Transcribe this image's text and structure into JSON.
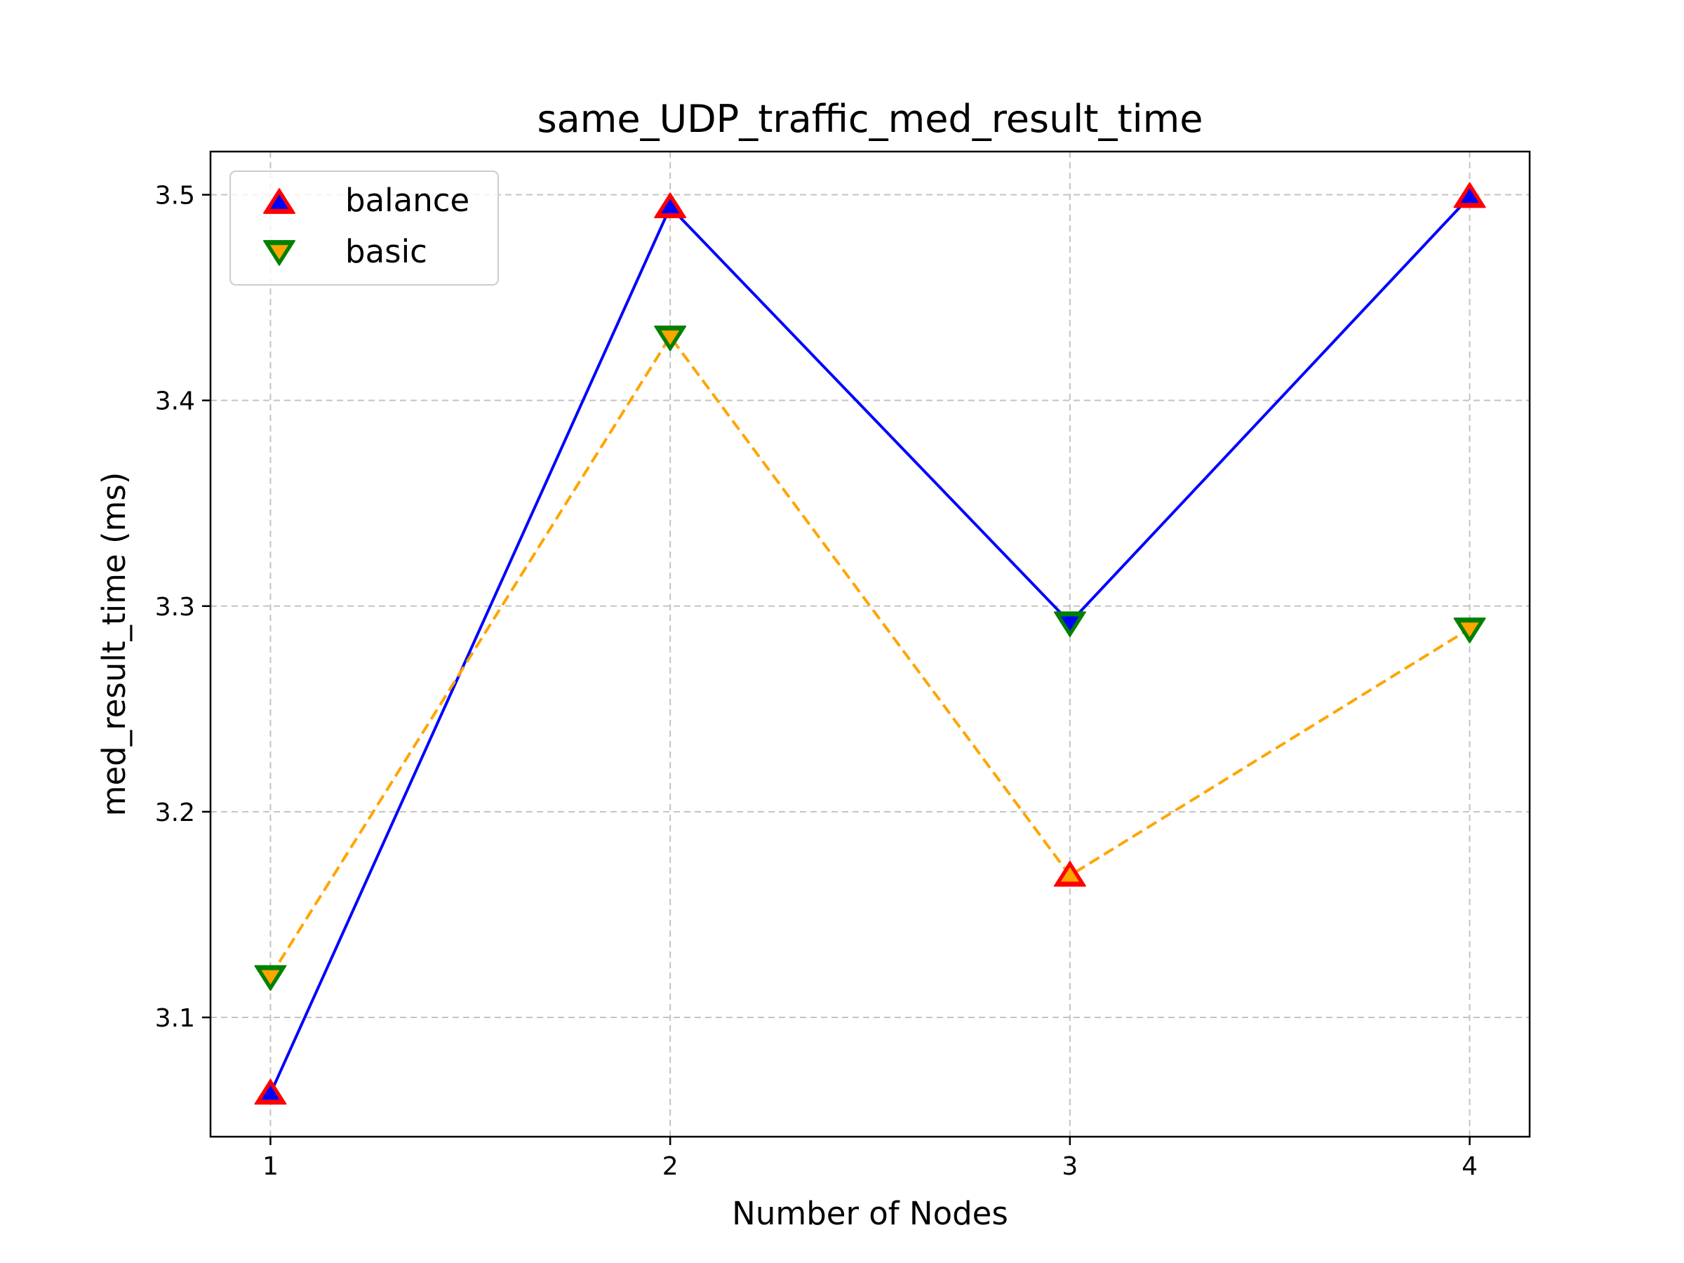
{
  "chart_data": {
    "type": "line",
    "title": "same_UDP_traffic_med_result_time",
    "xlabel": "Number of Nodes",
    "ylabel": "med_result_time (ms)",
    "x": [
      1,
      2,
      3,
      4
    ],
    "xticks": [
      "1",
      "2",
      "3",
      "4"
    ],
    "yticks": [
      "3.1",
      "3.2",
      "3.3",
      "3.4",
      "3.5"
    ],
    "xlim": [
      0.85,
      4.15
    ],
    "ylim": [
      3.042,
      3.521
    ],
    "grid": true,
    "legend_position": "upper-left",
    "series": [
      {
        "name": "balance",
        "values": [
          3.063,
          3.494,
          3.292,
          3.499
        ],
        "line_color": "#0000ff",
        "line_style": "solid",
        "marker": "triangle-up",
        "marker_colors": [
          "#0000ff",
          "#0000ff",
          "#0000ff",
          "#0000ff"
        ]
      },
      {
        "name": "basic",
        "values": [
          3.12,
          3.431,
          3.169,
          3.289
        ],
        "line_color": "#ffa500",
        "line_style": "dashed",
        "marker": "triangle-down",
        "marker_colors": [
          "#ffa500",
          "#ffa500",
          "#ffa500",
          "#ffa500"
        ]
      }
    ],
    "markers": [
      {
        "series": "balance",
        "x": 1,
        "y": 3.063,
        "shape": "triangle-up",
        "fill": "#0000ff",
        "edge": "#ff0000"
      },
      {
        "series": "balance",
        "x": 2,
        "y": 3.494,
        "shape": "triangle-up",
        "fill": "#0000ff",
        "edge": "#ff0000"
      },
      {
        "series": "balance",
        "x": 3,
        "y": 3.292,
        "shape": "triangle-down",
        "fill": "#0000ff",
        "edge": "#008000"
      },
      {
        "series": "balance",
        "x": 4,
        "y": 3.499,
        "shape": "triangle-up",
        "fill": "#0000ff",
        "edge": "#ff0000"
      },
      {
        "series": "basic",
        "x": 1,
        "y": 3.12,
        "shape": "triangle-down",
        "fill": "#ffa500",
        "edge": "#008000"
      },
      {
        "series": "basic",
        "x": 2,
        "y": 3.431,
        "shape": "triangle-down",
        "fill": "#ffa500",
        "edge": "#008000"
      },
      {
        "series": "basic",
        "x": 3,
        "y": 3.169,
        "shape": "triangle-up",
        "fill": "#ffa500",
        "edge": "#ff0000"
      },
      {
        "series": "basic",
        "x": 4,
        "y": 3.289,
        "shape": "triangle-down",
        "fill": "#ffa500",
        "edge": "#008000"
      }
    ],
    "legend": [
      {
        "label": "balance",
        "shape": "triangle-up",
        "fill": "#0000ff",
        "edge": "#ff0000"
      },
      {
        "label": "basic",
        "shape": "triangle-down",
        "fill": "#ffa500",
        "edge": "#008000"
      }
    ]
  }
}
